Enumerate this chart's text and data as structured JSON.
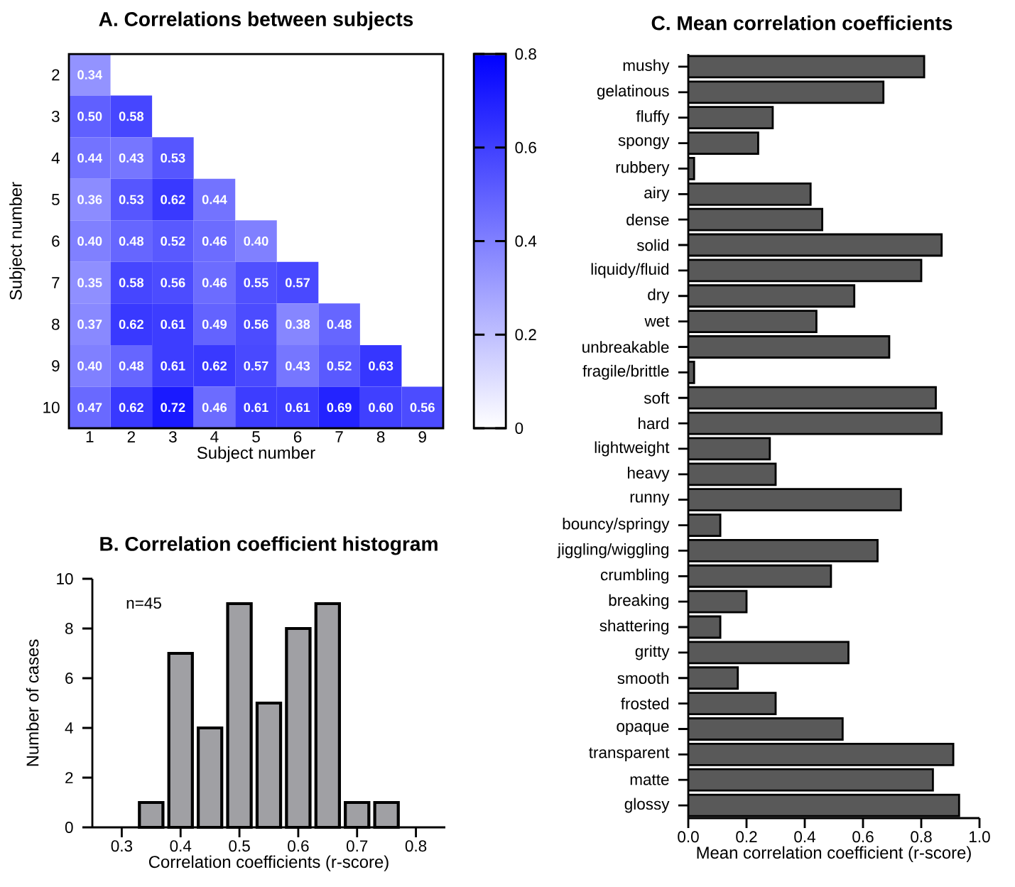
{
  "chart_data": [
    {
      "type": "heatmap",
      "title": "A. Correlations between subjects",
      "xlabel": "Subject number",
      "ylabel": "Subject number",
      "categories": [
        "1",
        "2",
        "3",
        "4",
        "5",
        "6",
        "7",
        "8",
        "9"
      ],
      "y_categories": [
        "2",
        "3",
        "4",
        "5",
        "6",
        "7",
        "8",
        "9",
        "10"
      ],
      "cells": [
        [
          0.34,
          null,
          null,
          null,
          null,
          null,
          null,
          null,
          null
        ],
        [
          0.5,
          0.58,
          null,
          null,
          null,
          null,
          null,
          null,
          null
        ],
        [
          0.44,
          0.43,
          0.53,
          null,
          null,
          null,
          null,
          null,
          null
        ],
        [
          0.36,
          0.53,
          0.62,
          0.44,
          null,
          null,
          null,
          null,
          null
        ],
        [
          0.4,
          0.48,
          0.52,
          0.46,
          0.4,
          null,
          null,
          null,
          null
        ],
        [
          0.35,
          0.58,
          0.56,
          0.46,
          0.55,
          0.57,
          null,
          null,
          null
        ],
        [
          0.37,
          0.62,
          0.61,
          0.49,
          0.56,
          0.38,
          0.48,
          null,
          null
        ],
        [
          0.4,
          0.48,
          0.61,
          0.62,
          0.57,
          0.43,
          0.52,
          0.63,
          null
        ],
        [
          0.47,
          0.62,
          0.72,
          0.46,
          0.61,
          0.61,
          0.69,
          0.6,
          0.56
        ]
      ],
      "cell_labels": [
        [
          "0.34",
          null,
          null,
          null,
          null,
          null,
          null,
          null,
          null
        ],
        [
          "0.50",
          "0.58",
          null,
          null,
          null,
          null,
          null,
          null,
          null
        ],
        [
          "0.44",
          "0.43",
          "0.53",
          null,
          null,
          null,
          null,
          null,
          null
        ],
        [
          "0.36",
          "0.53",
          "0.62",
          "0.44",
          null,
          null,
          null,
          null,
          null
        ],
        [
          "0.40",
          "0.48",
          "0.52",
          "0.46",
          "0.40",
          null,
          null,
          null,
          null
        ],
        [
          "0.35",
          "0.58",
          "0.56",
          "0.46",
          "0.55",
          "0.57",
          null,
          null,
          null
        ],
        [
          "0.37",
          "0.62",
          "0.61",
          "0.49",
          "0.56",
          "0.38",
          "0.48",
          null,
          null
        ],
        [
          "0.40",
          "0.48",
          "0.61",
          "0.62",
          "0.57",
          "0.43",
          "0.52",
          "0.63",
          null
        ],
        [
          "0.47",
          "0.62",
          "0.72",
          "0.46",
          "0.61",
          "0.61",
          "0.69",
          "0.60",
          "0.56"
        ]
      ],
      "clim": [
        0,
        0.8
      ],
      "cticks": [
        0,
        0.2,
        0.4,
        0.6,
        0.8
      ]
    },
    {
      "type": "histogram",
      "title": "B. Correlation coefficient histogram",
      "xlabel": "Correlation coefficients (r-score)",
      "ylabel": "Number of cases",
      "bins": [
        0.325,
        0.375,
        0.425,
        0.475,
        0.525,
        0.575,
        0.625,
        0.675,
        0.725,
        0.775
      ],
      "values": [
        1,
        7,
        4,
        9,
        5,
        8,
        9,
        1,
        1
      ],
      "color": "#a0a0a4",
      "xlim": [
        0.25,
        0.85
      ],
      "xticks": [
        0.3,
        0.4,
        0.5,
        0.6,
        0.7,
        0.8
      ],
      "ylim": [
        0,
        10
      ],
      "yticks": [
        0,
        2,
        4,
        6,
        8,
        10
      ],
      "annotations": [
        "n=45"
      ]
    },
    {
      "type": "bar",
      "orientation": "horizontal",
      "title": "C. Mean correlation coefficients",
      "xlabel": "Mean correlation coefficient (r-score)",
      "categories": [
        "mushy",
        "gelatinous",
        "fluffy",
        "spongy",
        "rubbery",
        "airy",
        "dense",
        "solid",
        "liquidy/fluid",
        "dry",
        "wet",
        "unbreakable",
        "fragile/brittle",
        "soft",
        "hard",
        "lightweight",
        "heavy",
        "runny",
        "bouncy/springy",
        "jiggling/wiggling",
        "crumbling",
        "breaking",
        "shattering",
        "gritty",
        "smooth",
        "frosted",
        "opaque",
        "transparent",
        "matte",
        "glossy"
      ],
      "values": [
        0.81,
        0.67,
        0.29,
        0.24,
        0.02,
        0.42,
        0.46,
        0.87,
        0.8,
        0.57,
        0.44,
        0.69,
        0.02,
        0.85,
        0.87,
        0.28,
        0.3,
        0.73,
        0.11,
        0.65,
        0.49,
        0.2,
        0.11,
        0.55,
        0.17,
        0.3,
        0.53,
        0.91,
        0.84,
        0.93
      ],
      "color": "#595959",
      "xlim": [
        0,
        1
      ],
      "xticks": [
        {
          "value": 0,
          "label": "0.0"
        },
        {
          "value": 0.2,
          "label": "0.2"
        },
        {
          "value": 0.4,
          "label": "0.4"
        },
        {
          "value": 0.6,
          "label": "0.6"
        },
        {
          "value": 0.8,
          "label": "0.8"
        },
        {
          "value": 1,
          "label": "1.0"
        }
      ]
    }
  ]
}
